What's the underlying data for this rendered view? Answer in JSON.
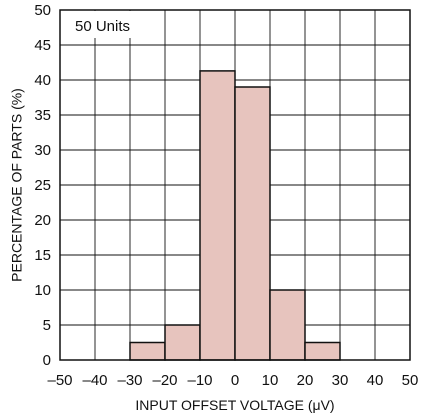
{
  "chart_data": {
    "type": "bar",
    "title": "",
    "annotation": "50 Units",
    "xlabel": "INPUT OFFSET VOLTAGE (μV)",
    "ylabel": "PERCENTAGE OF PARTS (%)",
    "xlim": [
      -50,
      50
    ],
    "ylim": [
      0,
      50
    ],
    "x_ticks": [
      "–50",
      "–40",
      "–30",
      "–20",
      "–10",
      "0",
      "10",
      "20",
      "30",
      "40",
      "50"
    ],
    "y_ticks": [
      "0",
      "5",
      "10",
      "15",
      "20",
      "25",
      "30",
      "35",
      "40",
      "45",
      "50"
    ],
    "bin_edges": [
      -30,
      -20,
      -10,
      0,
      10,
      20,
      30
    ],
    "values": [
      2.5,
      5,
      41.3,
      39,
      10,
      2.5
    ],
    "grid": true,
    "legend": "none",
    "colors": {
      "bar_fill": "#e7c4be",
      "bar_stroke": "#111111",
      "grid": "#111111",
      "axis": "#111111"
    }
  }
}
